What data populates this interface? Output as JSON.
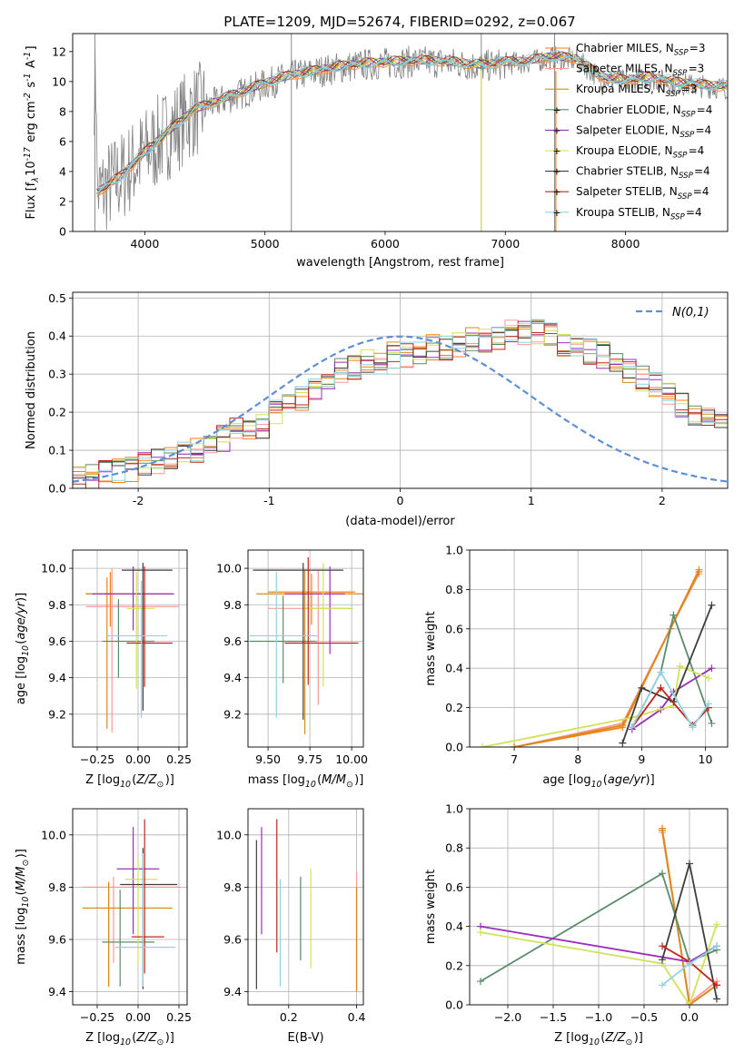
{
  "title": "PLATE=1209, MJD=52674, FIBERID=0292, z=0.067",
  "colors": {
    "grid": "#b0b0b0",
    "series": [
      "#ff7f0e",
      "#ff9896",
      "#d98a1f",
      "#5b8c6a",
      "#9b2fb8",
      "#d4e157",
      "#3d3d3d",
      "#c0261b",
      "#8fd3e0"
    ],
    "spectrum_data": "#808080",
    "spectrum_model": "#7fd3d8",
    "normal_curve": "#5b8fd6"
  },
  "series_labels": [
    "Chabrier MILES, N$_{SSP}$=3",
    "Salpeter MILES, N$_{SSP}$=3",
    "Kroupa MILES, N$_{SSP}$=3",
    "Chabrier ELODIE, N$_{SSP}$=4",
    "Salpeter ELODIE, N$_{SSP}$=4",
    "Kroupa ELODIE, N$_{SSP}$=4",
    "Chabrier STELIB, N$_{SSP}$=4",
    "Salpeter STELIB, N$_{SSP}$=4",
    "Kroupa STELIB, N$_{SSP}$=4"
  ],
  "chart_data": [
    {
      "id": "spectrum",
      "type": "line",
      "xlabel": "wavelength [Angstrom, rest frame]",
      "ylabel": "Flux [f$_\\lambda$10$^{-17}$ erg cm$^{-2}$ s$^{-1}$ A$^{-1}$]",
      "xlim": [
        3400,
        8850
      ],
      "ylim": [
        0,
        13.2
      ],
      "xticks": [
        4000,
        5000,
        6000,
        7000,
        8000
      ],
      "yticks": [
        0,
        2,
        4,
        6,
        8,
        10,
        12
      ],
      "grid": false,
      "legend_position": "right",
      "model_x": [
        3600,
        3800,
        4000,
        4200,
        4400,
        4600,
        4800,
        5000,
        5200,
        5400,
        5600,
        5800,
        6000,
        6200,
        6400,
        6600,
        6800,
        7000,
        7200,
        7400,
        7600,
        7800,
        8000,
        8200,
        8400,
        8600,
        8800
      ],
      "model_y": [
        2.5,
        3.6,
        5.2,
        6.6,
        8.0,
        8.6,
        9.2,
        9.8,
        10.3,
        10.6,
        10.9,
        11.1,
        11.2,
        11.3,
        11.3,
        11.2,
        11.0,
        11.2,
        11.3,
        11.6,
        11.4,
        10.2,
        10.0,
        10.2,
        9.9,
        9.7,
        9.6
      ]
    },
    {
      "id": "residuals",
      "type": "histogram",
      "xlabel": "(data-model)/error",
      "ylabel": "Normed distribution",
      "xlim": [
        -2.5,
        2.5
      ],
      "ylim": [
        0,
        0.515
      ],
      "xticks": [
        -2,
        -1,
        0,
        1,
        2
      ],
      "yticks": [
        0.0,
        0.1,
        0.2,
        0.3,
        0.4,
        0.5
      ],
      "grid": true,
      "legend": [
        "$\\mathcal{N}(0,1)$"
      ],
      "legend_position": "top-right",
      "bin_width": 0.1,
      "envelope": [
        0.03,
        0.03,
        0.04,
        0.05,
        0.05,
        0.06,
        0.07,
        0.08,
        0.09,
        0.1,
        0.12,
        0.13,
        0.15,
        0.16,
        0.16,
        0.2,
        0.22,
        0.24,
        0.26,
        0.28,
        0.31,
        0.32,
        0.33,
        0.33,
        0.35,
        0.35,
        0.36,
        0.37,
        0.37,
        0.38,
        0.39,
        0.39,
        0.4,
        0.41,
        0.41,
        0.41,
        0.4,
        0.38,
        0.37,
        0.36,
        0.35,
        0.33,
        0.31,
        0.29,
        0.27,
        0.25,
        0.22,
        0.2,
        0.18,
        0.16,
        0.14,
        0.12,
        0.11,
        0.09,
        0.08,
        0.07,
        0.06,
        0.05,
        0.04,
        0.04
      ]
    },
    {
      "id": "age_vs_Z",
      "type": "errorbar",
      "xlabel": "Z [log$_{10}$($Z/Z_\\odot$)]",
      "ylabel": "age  [log$_{10}$($age/yr$)]",
      "xlim": [
        -0.4,
        0.3
      ],
      "ylim": [
        9.02,
        10.1
      ],
      "xticks": [
        -0.25,
        0.0,
        0.25
      ],
      "xticklabels": [
        "−0.25",
        "0.00",
        "0.25"
      ],
      "yticks": [
        9.2,
        9.4,
        9.6,
        9.8,
        10.0
      ],
      "grid": true,
      "points": [
        {
          "s": 0,
          "x": -0.17,
          "y": 9.86,
          "xl": 0.15,
          "xh": 0.2,
          "yl": 0.18,
          "yh": 0.12
        },
        {
          "s": 1,
          "x": -0.16,
          "y": 9.79,
          "xl": 0.16,
          "xh": 0.41,
          "yl": 0.69,
          "yh": 0.21
        },
        {
          "s": 2,
          "x": -0.19,
          "y": 9.86,
          "xl": 0.13,
          "xh": 0.4,
          "yl": 0.74,
          "yh": 0.09
        },
        {
          "s": 3,
          "x": -0.12,
          "y": 9.6,
          "xl": 0.1,
          "xh": 0.22,
          "yl": 0.2,
          "yh": 0.23
        },
        {
          "s": 4,
          "x": -0.03,
          "y": 9.86,
          "xl": 0.25,
          "xh": 0.25,
          "yl": 0.2,
          "yh": 0.15
        },
        {
          "s": 5,
          "x": -0.01,
          "y": 9.78,
          "xl": 0.06,
          "xh": 0.11,
          "yl": 0.44,
          "yh": 0.2
        },
        {
          "s": 6,
          "x": 0.03,
          "y": 9.99,
          "xl": 0.13,
          "xh": 0.18,
          "yl": 0.77,
          "yh": 0.04
        },
        {
          "s": 7,
          "x": 0.04,
          "y": 9.59,
          "xl": 0.11,
          "xh": 0.17,
          "yl": 0.24,
          "yh": 0.42
        },
        {
          "s": 8,
          "x": 0.02,
          "y": 9.63,
          "xl": 0.21,
          "xh": 0.16,
          "yl": 0.45,
          "yh": 0.3
        }
      ]
    },
    {
      "id": "age_vs_mass",
      "type": "errorbar",
      "xlabel": "mass [log$_{10}$($M/M_\\odot$)]",
      "ylabel": "",
      "xlim": [
        9.38,
        10.07
      ],
      "ylim": [
        9.02,
        10.1
      ],
      "xticks": [
        9.5,
        9.75,
        10.0
      ],
      "xticklabels": [
        "9.50",
        "9.75",
        "10.00"
      ],
      "yticks": [
        9.2,
        9.4,
        9.6,
        9.8,
        10.0
      ],
      "grid": true,
      "points": [
        {
          "s": 0,
          "x": 9.76,
          "y": 9.87,
          "xl": 0.26,
          "xh": 0.26,
          "yl": 0.18,
          "yh": 0.1
        },
        {
          "s": 1,
          "x": 9.8,
          "y": 9.78,
          "xl": 0.3,
          "xh": 0.2,
          "yl": 0.53,
          "yh": 0.21
        },
        {
          "s": 2,
          "x": 9.72,
          "y": 9.86,
          "xl": 0.29,
          "xh": 0.36,
          "yl": 0.77,
          "yh": 0.13
        },
        {
          "s": 3,
          "x": 9.59,
          "y": 9.6,
          "xl": 0.2,
          "xh": 0.2,
          "yl": 0.23,
          "yh": 0.25
        },
        {
          "s": 4,
          "x": 9.87,
          "y": 9.86,
          "xl": 0.27,
          "xh": 0.09,
          "yl": 0.33,
          "yh": 0.15
        },
        {
          "s": 5,
          "x": 9.83,
          "y": 9.78,
          "xl": 0.1,
          "xh": 0.18,
          "yl": 0.43,
          "yh": 0.25
        },
        {
          "s": 6,
          "x": 9.71,
          "y": 9.99,
          "xl": 0.3,
          "xh": 0.24,
          "yl": 0.82,
          "yh": 0.04
        },
        {
          "s": 7,
          "x": 9.74,
          "y": 9.59,
          "xl": 0.14,
          "xh": 0.3,
          "yl": 0.23,
          "yh": 0.47
        },
        {
          "s": 8,
          "x": 9.55,
          "y": 9.63,
          "xl": 0.16,
          "xh": 0.25,
          "yl": 0.45,
          "yh": 0.35
        }
      ]
    },
    {
      "id": "weight_vs_age",
      "type": "line",
      "xlabel": "age  [log$_{10}$($age/yr$)]",
      "ylabel": "mass weight",
      "xlim": [
        6.3,
        10.35
      ],
      "ylim": [
        0,
        1.0
      ],
      "xticks": [
        7,
        8,
        9,
        10
      ],
      "yticks": [
        0.0,
        0.2,
        0.4,
        0.6,
        0.8,
        1.0
      ],
      "grid": true,
      "series": [
        {
          "s": 0,
          "x": [
            7.0,
            8.7,
            9.45,
            9.9
          ],
          "y": [
            0.0,
            0.1,
            0.6,
            0.9
          ]
        },
        {
          "s": 1,
          "x": [
            7.0,
            8.7,
            9.45,
            9.9
          ],
          "y": [
            0.0,
            0.12,
            0.6,
            0.88
          ]
        },
        {
          "s": 2,
          "x": [
            7.0,
            8.7,
            9.45,
            9.9
          ],
          "y": [
            0.0,
            0.11,
            0.6,
            0.89
          ]
        },
        {
          "s": 3,
          "x": [
            8.85,
            9.3,
            9.5,
            10.1
          ],
          "y": [
            0.1,
            0.38,
            0.67,
            0.12
          ]
        },
        {
          "s": 4,
          "x": [
            8.85,
            9.3,
            9.5,
            10.1
          ],
          "y": [
            0.09,
            0.19,
            0.28,
            0.4
          ]
        },
        {
          "s": 5,
          "x": [
            6.5,
            8.85,
            9.5,
            9.6,
            10.05
          ],
          "y": [
            0.0,
            0.15,
            0.21,
            0.41,
            0.35
          ]
        },
        {
          "s": 6,
          "x": [
            8.7,
            9.0,
            9.5,
            10.1
          ],
          "y": [
            0.02,
            0.3,
            0.23,
            0.72
          ]
        },
        {
          "s": 7,
          "x": [
            8.85,
            9.3,
            9.8,
            10.05
          ],
          "y": [
            0.1,
            0.3,
            0.11,
            0.2
          ]
        },
        {
          "s": 8,
          "x": [
            8.85,
            9.3,
            9.8,
            10.05
          ],
          "y": [
            0.1,
            0.38,
            0.1,
            0.22
          ]
        }
      ]
    },
    {
      "id": "mass_vs_Z",
      "type": "errorbar",
      "xlabel": "Z [log$_{10}$($Z/Z_\\odot$)]",
      "ylabel": "mass [log$_{10}$($M/M_\\odot$)]",
      "xlim": [
        -0.4,
        0.3
      ],
      "ylim": [
        9.35,
        10.1
      ],
      "xticks": [
        -0.25,
        0.0,
        0.25
      ],
      "xticklabels": [
        "−0.25",
        "0.00",
        "0.25"
      ],
      "yticks": [
        9.4,
        9.6,
        9.8,
        10.0
      ],
      "grid": true,
      "points": [
        {
          "s": 0,
          "x": -0.18,
          "y": 9.72,
          "xl": 0.16,
          "xh": 0.39,
          "yl": 0.3,
          "yh": 0.1
        },
        {
          "s": 1,
          "x": -0.15,
          "y": 9.8,
          "xl": 0.19,
          "xh": 0.41,
          "yl": 0.29,
          "yh": 0.04
        },
        {
          "s": 2,
          "x": -0.18,
          "y": 9.72,
          "xl": 0.16,
          "xh": 0.39,
          "yl": 0.3,
          "yh": 0.1
        },
        {
          "s": 3,
          "x": -0.11,
          "y": 9.59,
          "xl": 0.11,
          "xh": 0.21,
          "yl": 0.17,
          "yh": 0.2
        },
        {
          "s": 4,
          "x": -0.03,
          "y": 9.87,
          "xl": 0.1,
          "xh": 0.16,
          "yl": 0.25,
          "yh": 0.16
        },
        {
          "s": 5,
          "x": 0.0,
          "y": 9.83,
          "xl": 0.08,
          "xh": 0.12,
          "yl": 0.33,
          "yh": 0.08
        },
        {
          "s": 6,
          "x": 0.03,
          "y": 9.81,
          "xl": 0.14,
          "xh": 0.21,
          "yl": 0.4,
          "yh": 0.14
        },
        {
          "s": 7,
          "x": 0.04,
          "y": 9.61,
          "xl": 0.08,
          "xh": 0.12,
          "yl": 0.14,
          "yh": 0.45
        },
        {
          "s": 8,
          "x": 0.03,
          "y": 9.57,
          "xl": 0.17,
          "xh": 0.2,
          "yl": 0.15,
          "yh": 0.36
        }
      ]
    },
    {
      "id": "mass_vs_EBV",
      "type": "errorbar",
      "xlabel": "E(B-V)",
      "ylabel": "",
      "xlim": [
        0.08,
        0.42
      ],
      "ylim": [
        9.35,
        10.1
      ],
      "xticks": [
        0.2,
        0.4
      ],
      "xticklabels": [
        "0.2",
        "0.4"
      ],
      "yticks": [
        9.4,
        9.6,
        9.8,
        10.0
      ],
      "grid": true,
      "points": [
        {
          "s": 0,
          "x": 0.4,
          "y": 9.55,
          "xl": 0,
          "xh": 0,
          "yl": 0.15,
          "yh": 0.25
        },
        {
          "s": 1,
          "x": 0.4,
          "y": 9.62,
          "xl": 0,
          "xh": 0,
          "yl": 0.2,
          "yh": 0.24
        },
        {
          "s": 2,
          "x": 0.4,
          "y": 9.58,
          "xl": 0,
          "xh": 0,
          "yl": 0.17,
          "yh": 0.22
        },
        {
          "s": 3,
          "x": 0.235,
          "y": 9.68,
          "xl": 0,
          "xh": 0,
          "yl": 0.16,
          "yh": 0.16
        },
        {
          "s": 4,
          "x": 0.12,
          "y": 9.82,
          "xl": 0,
          "xh": 0,
          "yl": 0.2,
          "yh": 0.21
        },
        {
          "s": 5,
          "x": 0.265,
          "y": 9.68,
          "xl": 0,
          "xh": 0,
          "yl": 0.19,
          "yh": 0.19
        },
        {
          "s": 6,
          "x": 0.105,
          "y": 9.7,
          "xl": 0,
          "xh": 0,
          "yl": 0.29,
          "yh": 0.28
        },
        {
          "s": 7,
          "x": 0.165,
          "y": 9.8,
          "xl": 0,
          "xh": 0,
          "yl": 0.25,
          "yh": 0.26
        },
        {
          "s": 8,
          "x": 0.175,
          "y": 9.68,
          "xl": 0,
          "xh": 0,
          "yl": 0.26,
          "yh": 0.15
        }
      ]
    },
    {
      "id": "weight_vs_Z",
      "type": "line",
      "xlabel": "Z [log$_{10}$($Z/Z_\\odot$)]",
      "ylabel": "mass weight",
      "xlim": [
        -2.42,
        0.42
      ],
      "ylim": [
        0,
        1.0
      ],
      "xticks": [
        -2.0,
        -1.5,
        -1.0,
        -0.5,
        0.0
      ],
      "xticklabels": [
        "−2.0",
        "−1.5",
        "−1.0",
        "−0.5",
        "0.0"
      ],
      "yticks": [
        0.0,
        0.2,
        0.4,
        0.6,
        0.8,
        1.0
      ],
      "grid": true,
      "series": [
        {
          "s": 0,
          "x": [
            -0.3,
            0.0,
            0.3
          ],
          "y": [
            0.9,
            0.0,
            0.1
          ]
        },
        {
          "s": 1,
          "x": [
            -0.3,
            0.0,
            0.3
          ],
          "y": [
            0.88,
            0.01,
            0.12
          ]
        },
        {
          "s": 2,
          "x": [
            -0.3,
            0.0,
            0.3
          ],
          "y": [
            0.89,
            0.0,
            0.1
          ]
        },
        {
          "s": 3,
          "x": [
            -2.3,
            -0.3,
            0.0,
            0.3
          ],
          "y": [
            0.12,
            0.67,
            0.22,
            0.28
          ]
        },
        {
          "s": 4,
          "x": [
            -2.3,
            0.0,
            0.3
          ],
          "y": [
            0.4,
            0.22,
            0.3
          ]
        },
        {
          "s": 5,
          "x": [
            -2.3,
            -0.3,
            0.0,
            0.3
          ],
          "y": [
            0.37,
            0.21,
            0.0,
            0.41
          ]
        },
        {
          "s": 6,
          "x": [
            -0.3,
            0.0,
            0.3
          ],
          "y": [
            0.23,
            0.72,
            0.03
          ]
        },
        {
          "s": 7,
          "x": [
            -0.3,
            0.0,
            0.3
          ],
          "y": [
            0.3,
            0.22,
            0.1
          ]
        },
        {
          "s": 8,
          "x": [
            -0.3,
            0.0,
            0.3
          ],
          "y": [
            0.1,
            0.21,
            0.3
          ]
        }
      ]
    }
  ]
}
